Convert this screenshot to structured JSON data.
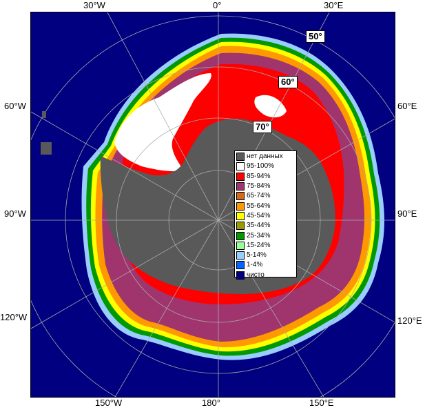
{
  "map": {
    "top_labels": [
      "30°W",
      "0°",
      "30°E"
    ],
    "bottom_labels": [
      "150°W",
      "180°",
      "150°E"
    ],
    "left_labels": [
      "60°W",
      "90°W",
      "120°W"
    ],
    "right_labels": [
      "60°E",
      "90°E",
      "120°E"
    ],
    "lat_labels": [
      "50°",
      "60°",
      "70°"
    ]
  },
  "legend": {
    "items": [
      {
        "label": "нет данных",
        "color": "#595959"
      },
      {
        "label": "95-100%",
        "color": "#ffffff"
      },
      {
        "label": "85-94%",
        "color": "#ff0000"
      },
      {
        "label": "75-84%",
        "color": "#a0356e"
      },
      {
        "label": "65-74%",
        "color": "#d2691e"
      },
      {
        "label": "55-64%",
        "color": "#ff9900"
      },
      {
        "label": "45-54%",
        "color": "#ffff00"
      },
      {
        "label": "35-44%",
        "color": "#999900"
      },
      {
        "label": "25-34%",
        "color": "#009900"
      },
      {
        "label": "15-24%",
        "color": "#99ff99"
      },
      {
        "label": "5-14%",
        "color": "#99ccff"
      },
      {
        "label": "1-4%",
        "color": "#0066ff"
      },
      {
        "label": "чисто",
        "color": "#000080"
      }
    ]
  },
  "colors": {
    "ocean": "#000080",
    "land": "#595959",
    "grid": "#aaaaaa"
  }
}
